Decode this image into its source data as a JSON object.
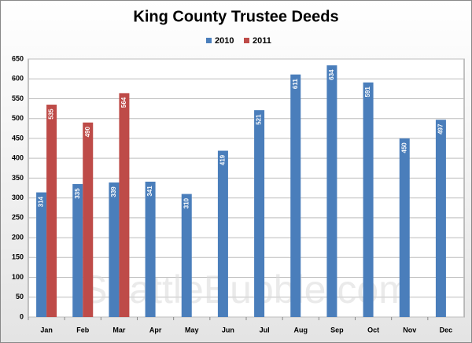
{
  "chart_data": {
    "type": "bar",
    "title": "King County Trustee Deeds",
    "categories": [
      "Jan",
      "Feb",
      "Mar",
      "Apr",
      "May",
      "Jun",
      "Jul",
      "Aug",
      "Sep",
      "Oct",
      "Nov",
      "Dec"
    ],
    "series": [
      {
        "name": "2010",
        "color": "#4a7ebb",
        "values": [
          314,
          335,
          339,
          341,
          310,
          419,
          521,
          611,
          634,
          591,
          450,
          497
        ]
      },
      {
        "name": "2011",
        "color": "#be4b48",
        "values": [
          535,
          490,
          564,
          null,
          null,
          null,
          null,
          null,
          null,
          null,
          null,
          null
        ]
      }
    ],
    "ylim": [
      0,
      650
    ],
    "yticks": [
      0,
      50,
      100,
      150,
      200,
      250,
      300,
      350,
      400,
      450,
      500,
      550,
      600,
      650
    ],
    "grid": true,
    "legend": "top",
    "watermark": "SeattleBubble.com"
  }
}
